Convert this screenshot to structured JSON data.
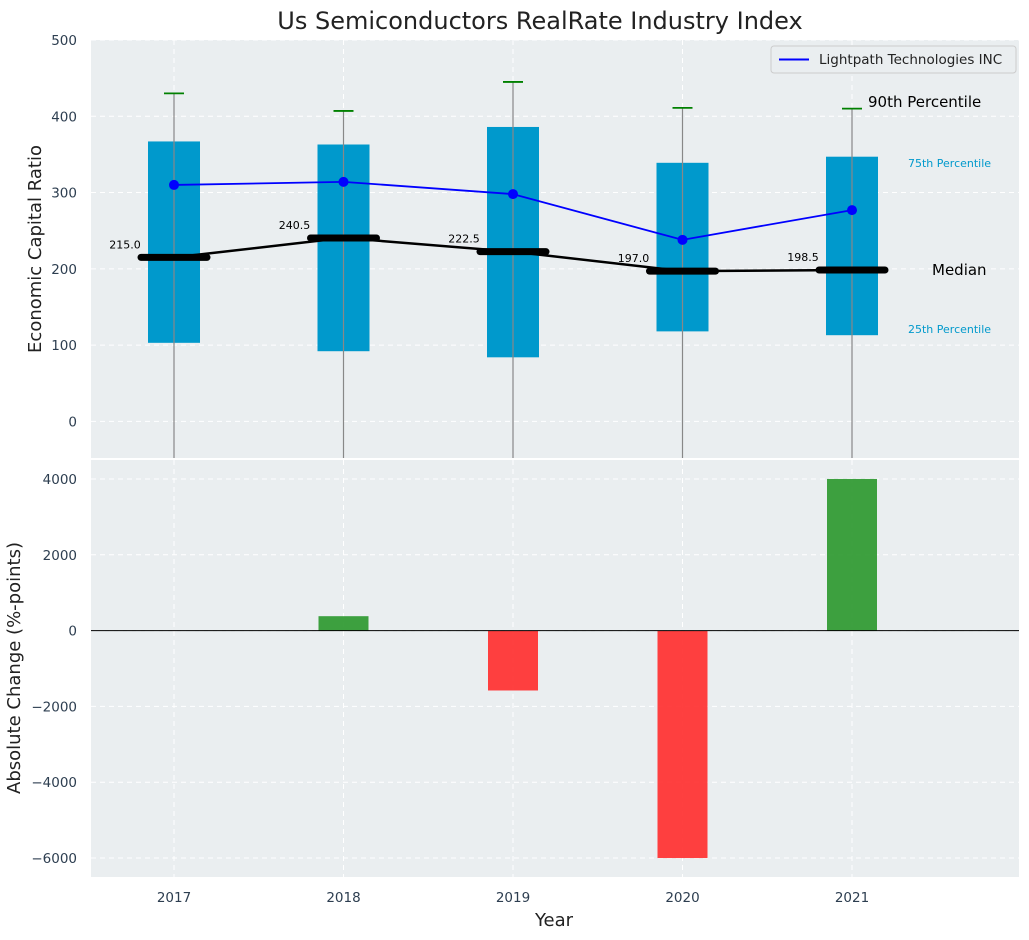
{
  "chart_data": [
    {
      "type": "box",
      "title": "Us Semiconductors RealRate Industry Index",
      "ylabel": "Economic Capital Ratio",
      "ylim": [
        -48,
        500
      ],
      "yticks": [
        0,
        100,
        200,
        300,
        400,
        500
      ],
      "grid": true,
      "categories": [
        "2017",
        "2018",
        "2019",
        "2020",
        "2021"
      ],
      "series": [
        {
          "name": "",
          "p10": [
            -48,
            -48,
            -48,
            -48,
            -48
          ],
          "p25": [
            103,
            92,
            84,
            118,
            113
          ],
          "median": [
            215.0,
            240.5,
            222.5,
            197.0,
            198.5
          ],
          "p75": [
            367,
            363,
            386,
            339,
            347
          ],
          "p90": [
            430,
            407,
            445,
            411,
            410
          ]
        },
        {
          "name": "Lightpath Technologies INC",
          "type": "line",
          "color": "#0000ff",
          "values": [
            310,
            314,
            298,
            238,
            277
          ]
        }
      ],
      "median_labels": [
        "215.0",
        "240.5",
        "222.5",
        "197.0",
        "198.5"
      ],
      "annotations": {
        "p90": "90th Percentile",
        "p75": "75th Percentile",
        "median": "Median",
        "p25": "25th Percentile"
      },
      "legend": {
        "position": "top-right",
        "entries": [
          "Lightpath Technologies INC"
        ]
      },
      "colors": {
        "box": "#0099cc",
        "whisker_cap": "#008000",
        "median": "#000000",
        "line": "#0000ff",
        "annotation_blue": "#0099cc",
        "background": "#eaeef0"
      }
    },
    {
      "type": "bar",
      "ylabel": "Absolute Change (%-points)",
      "xlabel": "Year",
      "ylim": [
        -6500,
        4500
      ],
      "yticks": [
        -6000,
        -4000,
        -2000,
        0,
        2000,
        4000
      ],
      "grid": true,
      "categories": [
        "2017",
        "2018",
        "2019",
        "2020",
        "2021"
      ],
      "values": [
        0,
        380,
        -1580,
        -6000,
        4000
      ],
      "colors": {
        "positive": "#2e9930",
        "negative": "#ff3030"
      }
    }
  ]
}
